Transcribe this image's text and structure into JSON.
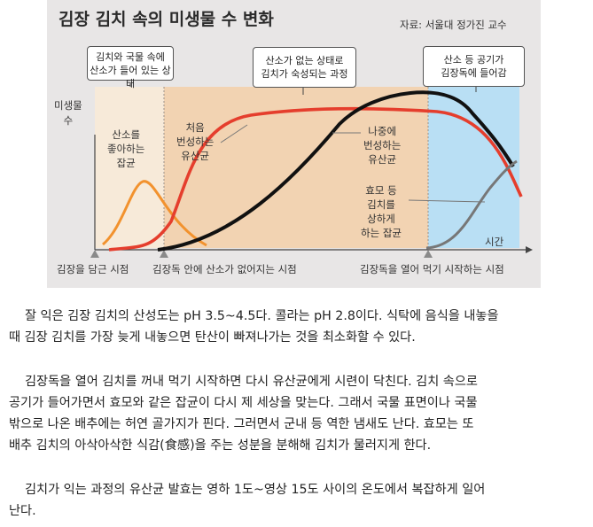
{
  "figure": {
    "title": "김장 김치 속의 미생물 수 변화",
    "source": "자료: 서울대 정가진 교수",
    "y_axis_label": [
      "미생물",
      "수"
    ],
    "x_axis_label": "시간",
    "phases": [
      {
        "label": [
          "김치와 국물 속에",
          "산소가 들어 있는 상태"
        ]
      },
      {
        "label": [
          "산소가 없는 상태로",
          "김치가 숙성되는 과정"
        ]
      },
      {
        "label": [
          "산소 등 공기가",
          "김장독에 들어감"
        ]
      }
    ],
    "curves": [
      {
        "label": [
          "산소를",
          "좋아하는",
          "잡균"
        ],
        "color": "#f2922e"
      },
      {
        "label": [
          "처음",
          "번성하는",
          "유산균"
        ],
        "color": "#e53e2d"
      },
      {
        "label": [
          "나중에",
          "번성하는",
          "유산균"
        ],
        "color": "#111111"
      },
      {
        "label": [
          "효모 등",
          "김치를",
          "상하게",
          "하는 잡균"
        ],
        "color": "#777777"
      }
    ],
    "timeline": [
      "김장을 담근 시점",
      "김장독 안에 산소가 없어지는 시점",
      "김장독을 열어 먹기 시작하는 시점"
    ]
  },
  "paragraphs": [
    [
      "잘 익은 김장 김치의 산성도는 pH 3.5~4.5다. 콜라는 pH 2.8이다. 식탁에 음식을 내놓을",
      "때 김장 김치를 가장 늦게 내놓으면 탄산이 빠져나가는 것을 최소화할 수 있다."
    ],
    [
      "김장독을 열어 김치를 꺼내 먹기 시작하면 다시 유산균에게 시련이 닥친다. 김치 속으로",
      "공기가 들어가면서 효모와 같은 잡균이 다시 제 세상을 맞는다. 그래서 국물 표면이나 국물",
      "밖으로 나온 배추에는 허연 골가지가 핀다. 그러면서 군내 등 역한 냄새도 난다. 효모는 또",
      "배추 김치의 아삭아삭한 식감(食感)을 주는 성분을 분해해 김치가 물러지게 한다."
    ],
    [
      "김치가 익는 과정의 유산균 발효는 영하 1도~영상 15도 사이의 온도에서 복잡하게 일어",
      "난다."
    ]
  ]
}
